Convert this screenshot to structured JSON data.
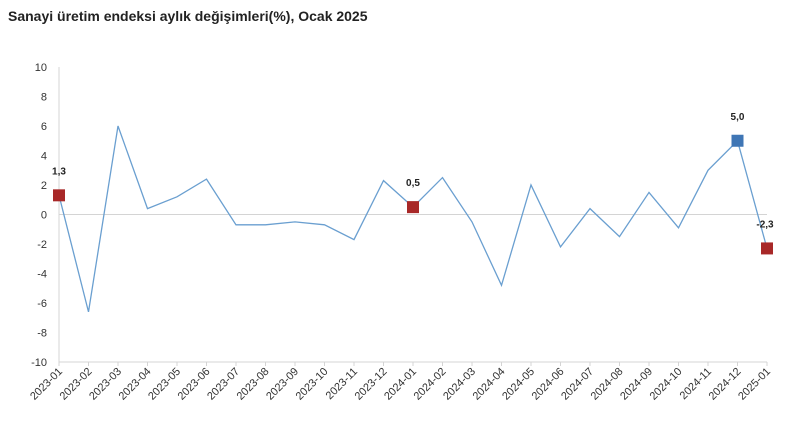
{
  "chart_data": {
    "type": "line",
    "title": "Sanayi üretim endeksi aylık değişimleri(%), Ocak 2025",
    "xlabel": "",
    "ylabel": "",
    "ylim": [
      -10,
      10
    ],
    "yticks": [
      "-10",
      "-8",
      "-6",
      "-4",
      "-2",
      "0",
      "2",
      "4",
      "6",
      "8",
      "10"
    ],
    "grid": false,
    "line_color": "#6a9fd0",
    "categories": [
      "2023-01",
      "2023-02",
      "2023-03",
      "2023-04",
      "2023-05",
      "2023-06",
      "2023-07",
      "2023-08",
      "2023-09",
      "2023-10",
      "2023-11",
      "2023-12",
      "2024-01",
      "2024-02",
      "2024-03",
      "2024-04",
      "2024-05",
      "2024-06",
      "2024-07",
      "2024-08",
      "2024-09",
      "2024-10",
      "2024-11",
      "2024-12",
      "2025-01"
    ],
    "series": [
      {
        "values": [
          1.3,
          -6.6,
          6.0,
          0.4,
          1.2,
          2.4,
          -0.7,
          -0.7,
          -0.5,
          -0.7,
          -1.7,
          2.3,
          0.5,
          2.5,
          -0.5,
          -4.8,
          2.0,
          -2.2,
          0.4,
          -1.5,
          1.5,
          -0.9,
          3.0,
          5.0,
          -2.3
        ]
      }
    ],
    "highlights": [
      {
        "category": "2023-01",
        "label": "1,3",
        "color": "#a82828"
      },
      {
        "category": "2024-01",
        "label": "0,5",
        "color": "#a82828"
      },
      {
        "category": "2024-12",
        "label": "5,0",
        "color": "#3f76b5"
      },
      {
        "category": "2025-01",
        "label": "-2,3",
        "color": "#a82828"
      }
    ]
  }
}
